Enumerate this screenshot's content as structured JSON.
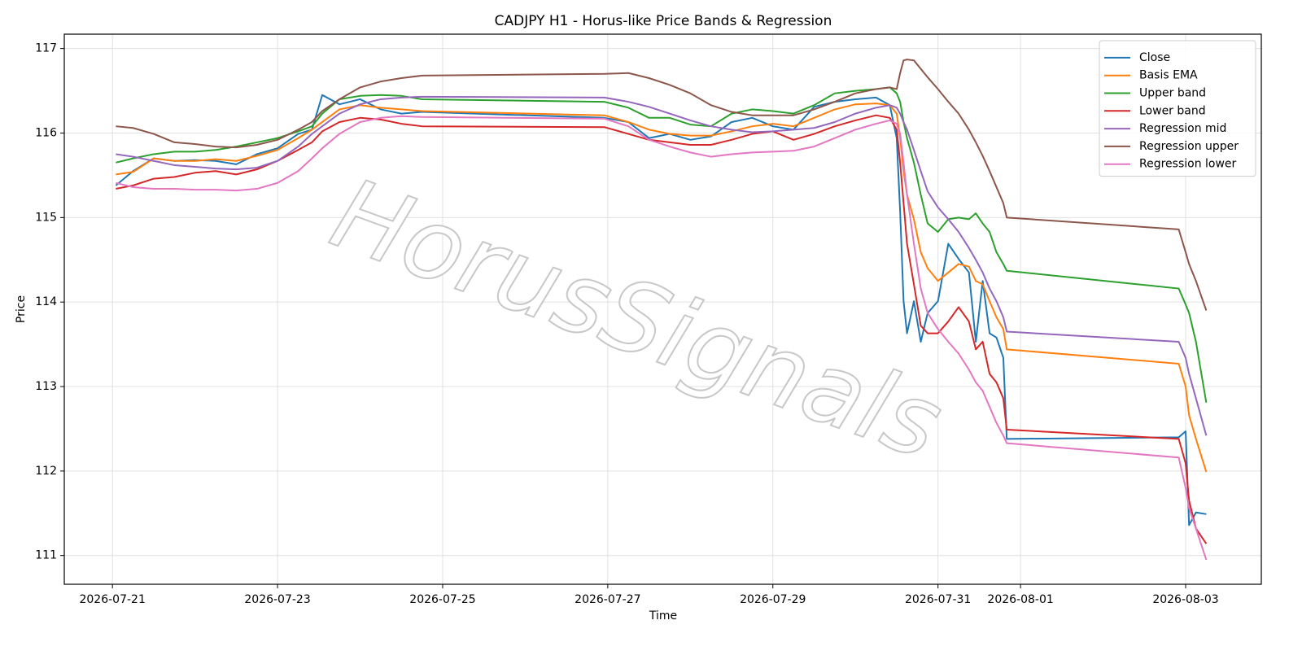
{
  "chart_data": {
    "type": "line",
    "title": "CADJPY H1 - Horus-like Price Bands & Regression",
    "x_label": "Time",
    "y_label": "Price",
    "watermark": "HorusSignals",
    "grid": true,
    "legend": "upper right",
    "x": [
      "2026-07-21T01:00",
      "2026-07-21T06:00",
      "2026-07-21T12:00",
      "2026-07-21T18:00",
      "2026-07-22T00:00",
      "2026-07-22T06:00",
      "2026-07-22T12:00",
      "2026-07-22T18:00",
      "2026-07-23T00:00",
      "2026-07-23T06:00",
      "2026-07-23T10:00",
      "2026-07-23T13:00",
      "2026-07-23T18:00",
      "2026-07-24T00:00",
      "2026-07-24T06:00",
      "2026-07-24T12:00",
      "2026-07-24T18:00",
      "2026-07-26T23:00",
      "2026-07-27T06:00",
      "2026-07-27T12:00",
      "2026-07-27T18:00",
      "2026-07-28T00:00",
      "2026-07-28T06:00",
      "2026-07-28T12:00",
      "2026-07-28T18:00",
      "2026-07-29T00:00",
      "2026-07-29T06:00",
      "2026-07-29T12:00",
      "2026-07-29T18:00",
      "2026-07-30T00:00",
      "2026-07-30T06:00",
      "2026-07-30T10:00",
      "2026-07-30T12:00",
      "2026-07-30T13:00",
      "2026-07-30T14:00",
      "2026-07-30T15:00",
      "2026-07-30T17:00",
      "2026-07-30T19:00",
      "2026-07-30T21:00",
      "2026-07-31T00:00",
      "2026-07-31T03:00",
      "2026-07-31T06:00",
      "2026-07-31T09:00",
      "2026-07-31T11:00",
      "2026-07-31T13:00",
      "2026-07-31T15:00",
      "2026-07-31T17:00",
      "2026-07-31T19:00",
      "2026-07-31T20:00",
      "2026-08-02T22:00",
      "2026-08-03T00:00",
      "2026-08-03T01:00",
      "2026-08-03T03:00",
      "2026-08-03T06:00"
    ],
    "xlim": [
      "2026-07-20T10:00",
      "2026-08-03T22:00"
    ],
    "xticks": [
      "2026-07-21",
      "2026-07-23",
      "2026-07-25",
      "2026-07-27",
      "2026-07-29",
      "2026-07-31",
      "2026-08-01",
      "2026-08-03"
    ],
    "ylim": [
      110.66,
      117.17
    ],
    "yticks": [
      111,
      112,
      113,
      114,
      115,
      116,
      117
    ],
    "series": [
      {
        "name": "Close",
        "color": "#1f77b4",
        "values": [
          115.38,
          115.55,
          115.7,
          115.67,
          115.68,
          115.67,
          115.63,
          115.75,
          115.82,
          115.99,
          116.04,
          116.45,
          116.34,
          116.4,
          116.28,
          116.23,
          116.25,
          116.18,
          116.13,
          115.94,
          115.99,
          115.92,
          115.96,
          116.13,
          116.18,
          116.08,
          116.04,
          116.31,
          116.37,
          116.4,
          116.42,
          116.33,
          115.94,
          115.07,
          114.01,
          113.63,
          114.01,
          113.53,
          113.87,
          114.01,
          114.69,
          114.51,
          114.35,
          113.53,
          114.25,
          113.63,
          113.58,
          113.34,
          112.38,
          112.4,
          112.47,
          111.36,
          111.51,
          111.49
        ]
      },
      {
        "name": "Basis EMA",
        "color": "#ff7f0e",
        "values": [
          115.51,
          115.54,
          115.7,
          115.67,
          115.67,
          115.69,
          115.67,
          115.73,
          115.8,
          115.94,
          116.04,
          116.13,
          116.28,
          116.33,
          116.3,
          116.28,
          116.26,
          116.21,
          116.13,
          116.04,
          115.99,
          115.97,
          115.97,
          116.02,
          116.08,
          116.11,
          116.08,
          116.18,
          116.28,
          116.34,
          116.35,
          116.33,
          116.23,
          115.94,
          115.55,
          115.27,
          114.98,
          114.59,
          114.4,
          114.25,
          114.35,
          114.45,
          114.42,
          114.25,
          114.21,
          114.01,
          113.82,
          113.68,
          113.44,
          113.27,
          113.0,
          112.66,
          112.38,
          111.99
        ]
      },
      {
        "name": "Upper band",
        "color": "#2ca02c",
        "values": [
          115.65,
          115.7,
          115.75,
          115.78,
          115.78,
          115.8,
          115.84,
          115.89,
          115.94,
          116.02,
          116.08,
          116.23,
          116.4,
          116.44,
          116.45,
          116.44,
          116.4,
          116.37,
          116.3,
          116.18,
          116.18,
          116.1,
          116.08,
          116.23,
          116.28,
          116.26,
          116.23,
          116.33,
          116.47,
          116.5,
          116.52,
          116.54,
          116.47,
          116.37,
          116.13,
          115.94,
          115.65,
          115.27,
          114.93,
          114.83,
          114.98,
          115.0,
          114.98,
          115.05,
          114.93,
          114.83,
          114.59,
          114.45,
          114.37,
          114.16,
          113.97,
          113.87,
          113.53,
          112.81
        ]
      },
      {
        "name": "Lower band",
        "color": "#d62728",
        "values": [
          115.34,
          115.38,
          115.46,
          115.48,
          115.53,
          115.55,
          115.51,
          115.57,
          115.67,
          115.8,
          115.89,
          116.02,
          116.13,
          116.18,
          116.16,
          116.11,
          116.08,
          116.07,
          115.99,
          115.92,
          115.89,
          115.86,
          115.86,
          115.92,
          115.99,
          116.02,
          115.92,
          115.99,
          116.08,
          116.15,
          116.21,
          116.18,
          116.04,
          115.65,
          115.17,
          114.69,
          114.21,
          113.72,
          113.63,
          113.63,
          113.77,
          113.94,
          113.77,
          113.44,
          113.53,
          113.15,
          113.05,
          112.86,
          112.49,
          112.38,
          112.09,
          111.65,
          111.32,
          111.14
        ]
      },
      {
        "name": "Regression mid",
        "color": "#9467bd",
        "values": [
          115.75,
          115.72,
          115.67,
          115.62,
          115.6,
          115.58,
          115.57,
          115.59,
          115.67,
          115.84,
          115.99,
          116.08,
          116.23,
          116.34,
          116.4,
          116.42,
          116.43,
          116.42,
          116.37,
          116.31,
          116.23,
          116.15,
          116.08,
          116.04,
          116.01,
          116.02,
          116.04,
          116.06,
          116.13,
          116.23,
          116.3,
          116.33,
          116.3,
          116.23,
          116.13,
          116.04,
          115.8,
          115.55,
          115.31,
          115.12,
          114.98,
          114.83,
          114.64,
          114.5,
          114.35,
          114.16,
          114.01,
          113.82,
          113.65,
          113.53,
          113.34,
          113.15,
          112.86,
          112.42
        ]
      },
      {
        "name": "Regression upper",
        "color": "#8c564b",
        "values": [
          116.08,
          116.06,
          115.99,
          115.89,
          115.87,
          115.84,
          115.83,
          115.86,
          115.92,
          116.04,
          116.13,
          116.26,
          116.4,
          116.54,
          116.61,
          116.65,
          116.68,
          116.7,
          116.71,
          116.65,
          116.57,
          116.47,
          116.33,
          116.25,
          116.21,
          116.21,
          116.21,
          116.28,
          116.37,
          116.47,
          116.52,
          116.54,
          116.52,
          116.71,
          116.86,
          116.87,
          116.86,
          116.76,
          116.66,
          116.52,
          116.37,
          116.23,
          116.04,
          115.89,
          115.73,
          115.55,
          115.36,
          115.17,
          115.0,
          114.86,
          114.59,
          114.45,
          114.25,
          113.9
        ]
      },
      {
        "name": "Regression lower",
        "color": "#e377c2",
        "values": [
          115.41,
          115.36,
          115.34,
          115.34,
          115.33,
          115.33,
          115.32,
          115.34,
          115.41,
          115.55,
          115.7,
          115.82,
          115.99,
          116.13,
          116.18,
          116.2,
          116.19,
          116.17,
          116.08,
          115.92,
          115.84,
          115.77,
          115.72,
          115.75,
          115.77,
          115.78,
          115.79,
          115.84,
          115.94,
          116.04,
          116.11,
          116.15,
          116.11,
          115.99,
          115.65,
          115.27,
          114.69,
          114.16,
          113.87,
          113.68,
          113.53,
          113.39,
          113.2,
          113.05,
          112.95,
          112.76,
          112.57,
          112.42,
          112.33,
          112.16,
          111.8,
          111.56,
          111.32,
          110.95
        ]
      }
    ]
  }
}
